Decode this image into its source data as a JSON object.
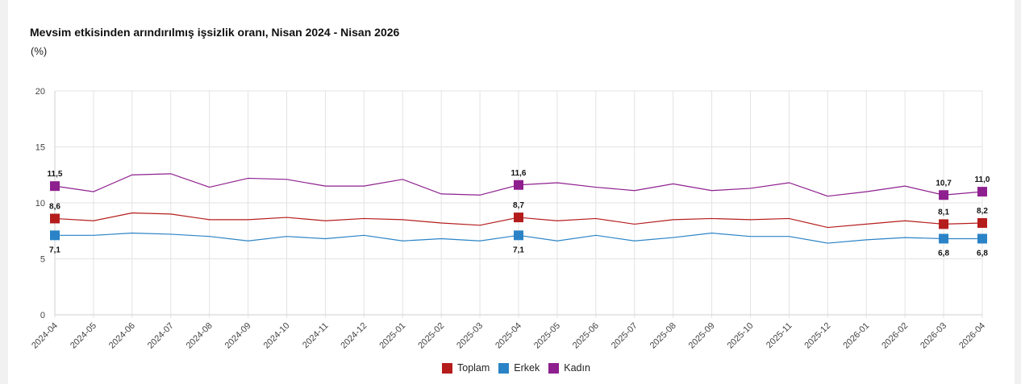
{
  "header": {
    "title": "Mevsim etkisinden arındırılmış işsizlik oranı, Nisan 2024 - Nisan 2026",
    "unit": "(%)"
  },
  "colors": {
    "toplam": "#b51c1c",
    "erkek": "#2a83c6",
    "kadin": "#8e1f8e",
    "grid": "#e3e3e3"
  },
  "chart_data": {
    "type": "line",
    "title": "Mevsim etkisinden arındırılmış işsizlik oranı, Nisan 2024 - Nisan 2026",
    "ylabel": "(%)",
    "xlabel": "",
    "ylim": [
      0,
      20
    ],
    "yticks": [
      0,
      5,
      10,
      15,
      20
    ],
    "grid": true,
    "legend_position": "bottom",
    "categories": [
      "2024-04",
      "2024-05",
      "2024-06",
      "2024-07",
      "2024-08",
      "2024-09",
      "2024-10",
      "2024-11",
      "2024-12",
      "2025-01",
      "2025-02",
      "2025-03",
      "2025-04",
      "2025-05",
      "2025-06",
      "2025-07",
      "2025-08",
      "2025-09",
      "2025-10",
      "2025-11",
      "2025-12",
      "2026-01",
      "2026-02",
      "2026-03",
      "2026-04"
    ],
    "series": [
      {
        "name": "Toplam",
        "color": "#b51c1c",
        "values": [
          8.6,
          8.4,
          9.1,
          9.0,
          8.5,
          8.5,
          8.7,
          8.4,
          8.6,
          8.5,
          8.2,
          8.0,
          8.7,
          8.4,
          8.6,
          8.1,
          8.5,
          8.6,
          8.5,
          8.6,
          7.8,
          8.1,
          8.4,
          8.1,
          8.2
        ],
        "labels": [
          {
            "index": 0,
            "text": "8,6",
            "pos": "above"
          },
          {
            "index": 12,
            "text": "8,7",
            "pos": "above"
          },
          {
            "index": 23,
            "text": "8,1",
            "pos": "above"
          },
          {
            "index": 24,
            "text": "8,2",
            "pos": "above"
          }
        ]
      },
      {
        "name": "Erkek",
        "color": "#2a83c6",
        "values": [
          7.1,
          7.1,
          7.3,
          7.2,
          7.0,
          6.6,
          7.0,
          6.8,
          7.1,
          6.6,
          6.8,
          6.6,
          7.1,
          6.6,
          7.1,
          6.6,
          6.9,
          7.3,
          7.0,
          7.0,
          6.4,
          6.7,
          6.9,
          6.8,
          6.8
        ],
        "labels": [
          {
            "index": 0,
            "text": "7,1",
            "pos": "below"
          },
          {
            "index": 12,
            "text": "7,1",
            "pos": "below"
          },
          {
            "index": 23,
            "text": "6,8",
            "pos": "below"
          },
          {
            "index": 24,
            "text": "6,8",
            "pos": "below"
          }
        ]
      },
      {
        "name": "Kadın",
        "color": "#8e1f8e",
        "values": [
          11.5,
          11.0,
          12.5,
          12.6,
          11.4,
          12.2,
          12.1,
          11.5,
          11.5,
          12.1,
          10.8,
          10.7,
          11.6,
          11.8,
          11.4,
          11.1,
          11.7,
          11.1,
          11.3,
          11.8,
          10.6,
          11.0,
          11.5,
          10.7,
          11.0
        ],
        "labels": [
          {
            "index": 0,
            "text": "11,5",
            "pos": "above"
          },
          {
            "index": 12,
            "text": "11,6",
            "pos": "above"
          },
          {
            "index": 23,
            "text": "10,7",
            "pos": "above"
          },
          {
            "index": 24,
            "text": "11,0",
            "pos": "above"
          }
        ]
      }
    ],
    "highlight_indices": [
      0,
      12,
      23,
      24
    ]
  }
}
